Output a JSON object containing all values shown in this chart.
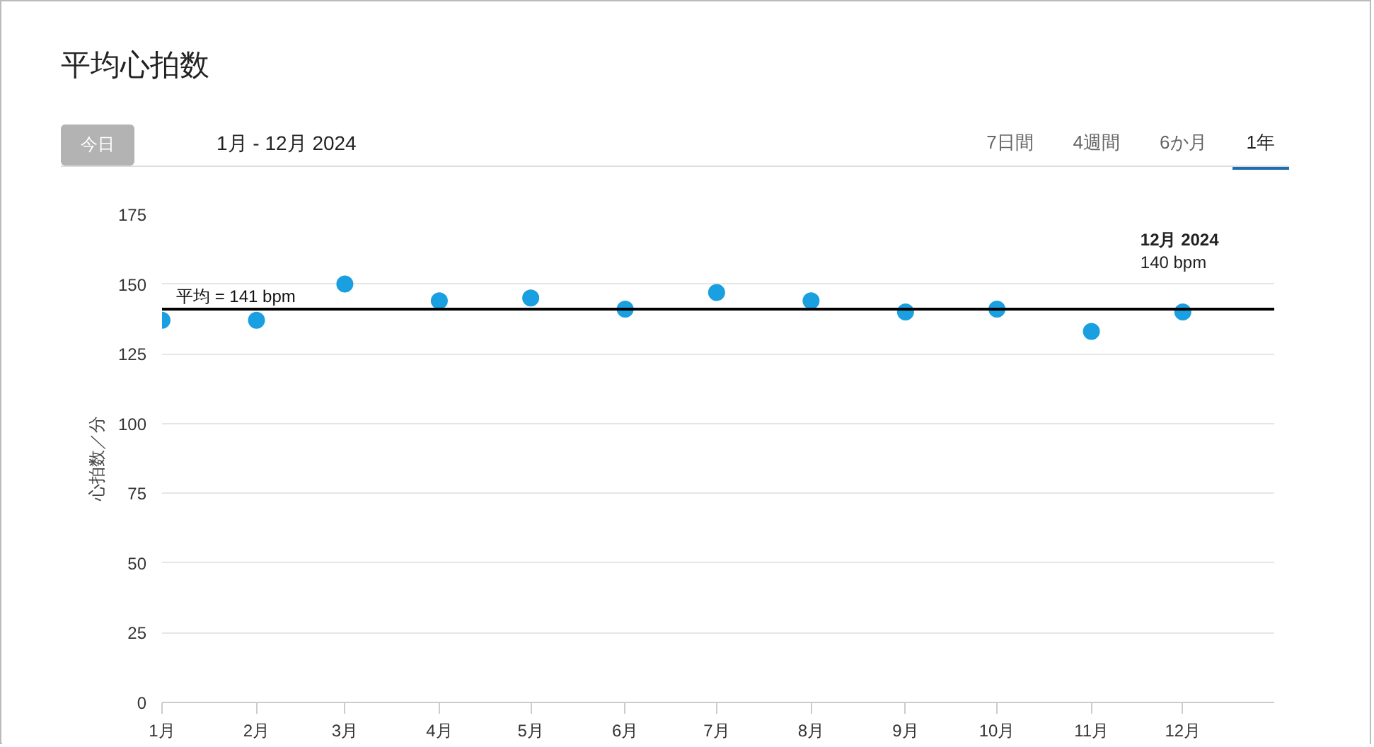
{
  "chart_data": {
    "type": "scatter",
    "title": "平均心拍数",
    "ylabel": "心拍数／分",
    "x": [
      "2024-01",
      "2024-02",
      "2024-03",
      "2024-04",
      "2024-05",
      "2024-06",
      "2024-07",
      "2024-08",
      "2024-09",
      "2024-10",
      "2024-11",
      "2024-12"
    ],
    "series": [
      {
        "color": "#1a9fe0",
        "values": [
          137,
          137,
          150,
          144,
          145,
          141,
          147,
          144,
          140,
          141,
          133,
          140
        ]
      }
    ],
    "xlim": [
      "2024-01-01",
      "2024-12-31"
    ],
    "xticks": [
      {
        "value": "2024-01",
        "label": "1月"
      },
      {
        "value": "2024-02",
        "label": "2月"
      },
      {
        "value": "2024-03",
        "label": "3月"
      },
      {
        "value": "2024-04",
        "label": "4月"
      },
      {
        "value": "2024-05",
        "label": "5月"
      },
      {
        "value": "2024-06",
        "label": "6月"
      },
      {
        "value": "2024-07",
        "label": "7月"
      },
      {
        "value": "2024-08",
        "label": "8月"
      },
      {
        "value": "2024-09",
        "label": "9月"
      },
      {
        "value": "2024-10",
        "label": "10月"
      },
      {
        "value": "2024-11",
        "label": "11月"
      },
      {
        "value": "2024-12",
        "label": "12月"
      }
    ],
    "ylim": [
      0,
      175
    ],
    "yticks": [
      0,
      25,
      50,
      75,
      100,
      125,
      150,
      175
    ],
    "ref_lines": [
      {
        "axis": "y",
        "value": 141,
        "label": "平均 = 141 bpm",
        "color": "#000000"
      }
    ],
    "annotations": [
      "今日",
      "1月 - 12月 2024",
      "7日間",
      "4週間",
      "6か月",
      "1年",
      {
        "text": "12月 2024\n140 bpm",
        "x": "2024-12",
        "y": 140
      }
    ],
    "grid": "y",
    "marker": "circle"
  }
}
